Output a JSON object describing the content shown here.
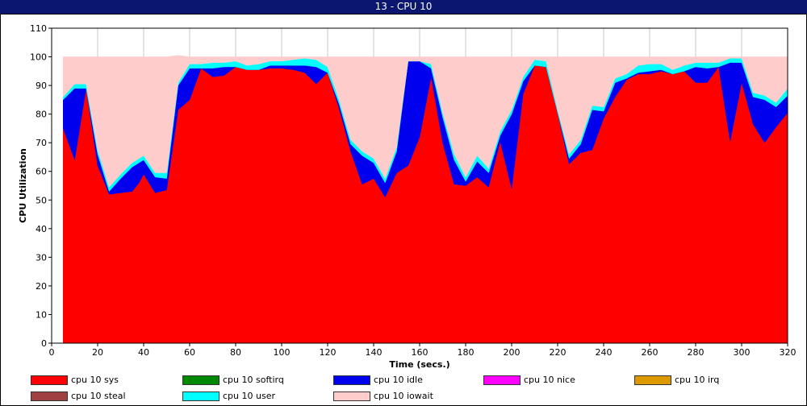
{
  "window": {
    "title": "13 - CPU 10"
  },
  "chart_data": {
    "type": "area",
    "stacked": true,
    "xlabel": "Time (secs.)",
    "ylabel": "CPU Utilization",
    "xlim": [
      0,
      320
    ],
    "ylim": [
      0,
      110
    ],
    "xticks": [
      0,
      20,
      40,
      60,
      80,
      100,
      120,
      140,
      160,
      180,
      200,
      220,
      240,
      260,
      280,
      300,
      320
    ],
    "yticks": [
      0,
      10,
      20,
      30,
      40,
      50,
      60,
      70,
      80,
      90,
      100,
      110
    ],
    "grid": "vertical",
    "legend_position": "bottom",
    "x": [
      5,
      10,
      15,
      20,
      25,
      30,
      35,
      38,
      40,
      45,
      50,
      55,
      60,
      65,
      70,
      75,
      80,
      85,
      90,
      95,
      100,
      105,
      110,
      115,
      120,
      125,
      130,
      135,
      140,
      145,
      150,
      155,
      160,
      165,
      170,
      175,
      180,
      185,
      190,
      195,
      200,
      205,
      210,
      215,
      220,
      225,
      230,
      235,
      240,
      245,
      250,
      255,
      260,
      265,
      270,
      275,
      280,
      285,
      290,
      295,
      300,
      305,
      310,
      315,
      320
    ],
    "series": [
      {
        "name": "cpu 10 sys",
        "color": "#ff0000",
        "values": [
          75,
          64,
          89,
          62,
          52,
          52.5,
          53,
          56,
          59,
          52.5,
          53.5,
          81.5,
          85,
          96,
          93,
          93.5,
          96.5,
          95.5,
          95.5,
          96,
          96,
          95.5,
          94.5,
          90.5,
          94.5,
          82,
          67,
          55.5,
          57.5,
          51,
          59.5,
          62,
          72,
          93,
          70,
          55.5,
          55,
          58,
          54.5,
          70.5,
          54,
          87,
          97,
          96.5,
          80.5,
          62.5,
          66.5,
          67.5,
          78.5,
          86,
          92,
          94,
          94,
          95,
          94,
          95,
          91,
          91,
          96.5,
          70.5,
          91,
          76.5,
          70,
          75.5,
          80.5
        ]
      },
      {
        "name": "cpu 10 softirq",
        "color": "#008800",
        "values": [
          0,
          0,
          0,
          0,
          0,
          0,
          0,
          0,
          0,
          0,
          0,
          0,
          0,
          0,
          0,
          0,
          0,
          0,
          0,
          0,
          0,
          0,
          0,
          0,
          0,
          0,
          0,
          0,
          0,
          0,
          0,
          0,
          0,
          0,
          0,
          0,
          0,
          0,
          0,
          0,
          0,
          0,
          0,
          0,
          0,
          0,
          0,
          0,
          0,
          0,
          0,
          0,
          0,
          0,
          0,
          0,
          0,
          0,
          0,
          0,
          0,
          0,
          0,
          0,
          0
        ]
      },
      {
        "name": "cpu 10 idle",
        "color": "#0000ee",
        "values": [
          10,
          25,
          0,
          4,
          1,
          5,
          8.5,
          7,
          5,
          5.5,
          4,
          8.5,
          11,
          0,
          3,
          3,
          0,
          0,
          0,
          1,
          1,
          1.5,
          2.5,
          6,
          0,
          1.5,
          2.5,
          10,
          5.5,
          5,
          7.5,
          36.5,
          26.5,
          3,
          9,
          8.5,
          1.5,
          5.5,
          5,
          2,
          26,
          4.5,
          0,
          0,
          0,
          2,
          3,
          14,
          2.5,
          5,
          0.5,
          0.5,
          1,
          0.5,
          0,
          0,
          5.5,
          5,
          0,
          27.5,
          7,
          9.5,
          15,
          7,
          6
        ]
      },
      {
        "name": "cpu 10 nice",
        "color": "#ff00ff",
        "values": [
          0,
          0,
          0,
          0,
          0,
          0,
          0,
          0,
          0,
          0,
          0,
          0,
          0,
          0,
          0,
          0,
          0,
          0,
          0,
          0,
          0,
          0,
          0,
          0,
          0,
          0,
          0,
          0,
          0,
          0,
          0,
          0,
          0,
          0,
          0,
          0,
          0,
          0,
          0,
          0,
          0,
          0,
          0,
          0,
          0,
          0,
          0,
          0,
          0,
          0,
          0,
          0,
          0,
          0,
          0,
          0,
          0,
          0,
          0,
          0,
          0,
          0,
          0,
          0,
          0
        ]
      },
      {
        "name": "cpu 10 irq",
        "color": "#dd9900",
        "values": [
          0,
          0,
          0,
          0,
          0,
          0,
          0,
          0,
          0,
          0,
          0,
          0,
          0,
          0,
          0,
          0,
          0,
          0,
          0,
          0,
          0,
          0,
          0,
          0,
          0,
          0,
          0,
          0,
          0,
          0,
          0,
          0,
          0,
          0,
          0,
          0,
          0,
          0,
          0,
          0,
          0,
          0,
          0,
          0,
          0,
          0,
          0,
          0,
          0,
          0,
          0,
          0,
          0,
          0,
          0,
          0,
          0,
          0,
          0,
          0,
          0,
          0,
          0,
          0,
          0
        ]
      },
      {
        "name": "cpu 10 steal",
        "color": "#a04040",
        "values": [
          0,
          0,
          0,
          0,
          0,
          0,
          0,
          0,
          0,
          0,
          0,
          0,
          0,
          0,
          0,
          0,
          0,
          0,
          0,
          0,
          0,
          0,
          0,
          0,
          0,
          0,
          0,
          0,
          0,
          0,
          0,
          0,
          0,
          0,
          0,
          0,
          0,
          0,
          0,
          0,
          0,
          0,
          0,
          0,
          0,
          0,
          0,
          0,
          0,
          0,
          0,
          0,
          0,
          0,
          0,
          0,
          0,
          0,
          0,
          0,
          0,
          0,
          0,
          0,
          0
        ]
      },
      {
        "name": "cpu 10 user",
        "color": "#00ffff",
        "values": [
          1,
          1.5,
          1.5,
          1.5,
          1.5,
          1.5,
          1.5,
          1.5,
          1.5,
          1.5,
          2,
          1,
          1.5,
          1.5,
          2,
          1.5,
          2,
          1.5,
          2,
          1.5,
          1.5,
          2,
          2.5,
          2.5,
          2,
          1.5,
          1.5,
          1.5,
          1.5,
          1.5,
          1.5,
          0,
          0,
          1.5,
          1.5,
          2,
          1.5,
          2,
          1.5,
          1.5,
          1.5,
          1.5,
          2,
          2,
          1,
          1.5,
          1.5,
          1.5,
          1.5,
          1.5,
          1.5,
          2.5,
          2.5,
          2,
          1.5,
          2,
          1.5,
          2,
          1.5,
          1.5,
          1.5,
          1.5,
          1.5,
          1.5,
          2.5
        ]
      },
      {
        "name": "cpu 10 iowait",
        "color": "#ffcccc",
        "values": [
          14,
          9.5,
          9.5,
          32.5,
          45.5,
          41,
          37,
          35.5,
          34.5,
          40.5,
          40.5,
          9.5,
          2.5,
          2.5,
          2,
          2,
          1.5,
          3,
          2.5,
          1.5,
          1.5,
          1,
          0.5,
          1,
          3.5,
          15,
          29,
          33,
          35.5,
          42.5,
          31.5,
          1.5,
          1.5,
          2.5,
          19.5,
          34,
          42,
          34.5,
          39,
          26,
          18.5,
          7,
          1,
          1.5,
          18.5,
          34,
          29,
          17,
          17.5,
          7.5,
          6,
          3,
          2.5,
          2.5,
          4.5,
          3,
          2,
          2,
          2,
          0.5,
          0.5,
          12.5,
          13.5,
          16,
          11
        ]
      }
    ]
  }
}
